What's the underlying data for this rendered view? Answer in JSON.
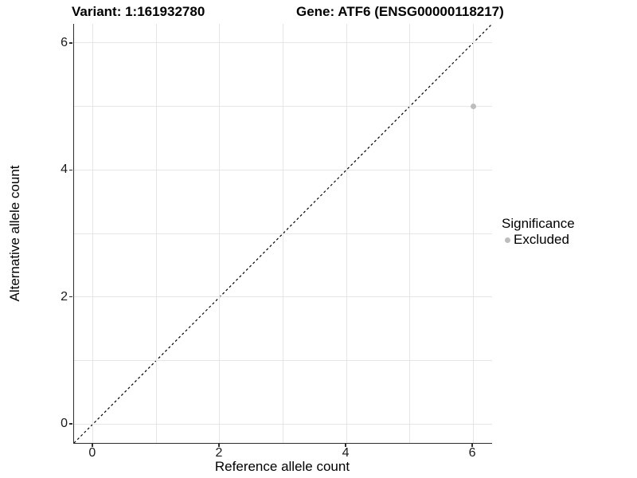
{
  "chart_data": {
    "type": "scatter",
    "title_left": "Variant: 1:161932780",
    "title_right": "Gene: ATF6 (ENSG00000118217)",
    "xlabel": "Reference allele count",
    "ylabel": "Alternative allele count",
    "xlim": [
      -0.3,
      6.3
    ],
    "ylim": [
      -0.3,
      6.3
    ],
    "xticks": [
      0,
      2,
      4,
      6
    ],
    "yticks": [
      0,
      2,
      4,
      6
    ],
    "xgrid": [
      0,
      1,
      2,
      3,
      4,
      5,
      6
    ],
    "ygrid": [
      0,
      1,
      2,
      3,
      4,
      5,
      6
    ],
    "grid": true,
    "series": [
      {
        "name": "Excluded",
        "color": "#bdbdbd",
        "points": [
          {
            "x": 6,
            "y": 5
          }
        ]
      }
    ],
    "reference_line": {
      "type": "identity",
      "from": [
        -0.3,
        -0.3
      ],
      "to": [
        6.3,
        6.3
      ],
      "style": "dashed",
      "color": "#000000"
    },
    "legend": {
      "title": "Significance",
      "position": "right-center",
      "entries": [
        {
          "label": "Excluded",
          "color": "#bdbdbd"
        }
      ]
    },
    "colors": {
      "gridline": "#e6e6e6",
      "axis_line": "#2e2e2e",
      "text": "#000000",
      "background": "#ffffff"
    }
  }
}
